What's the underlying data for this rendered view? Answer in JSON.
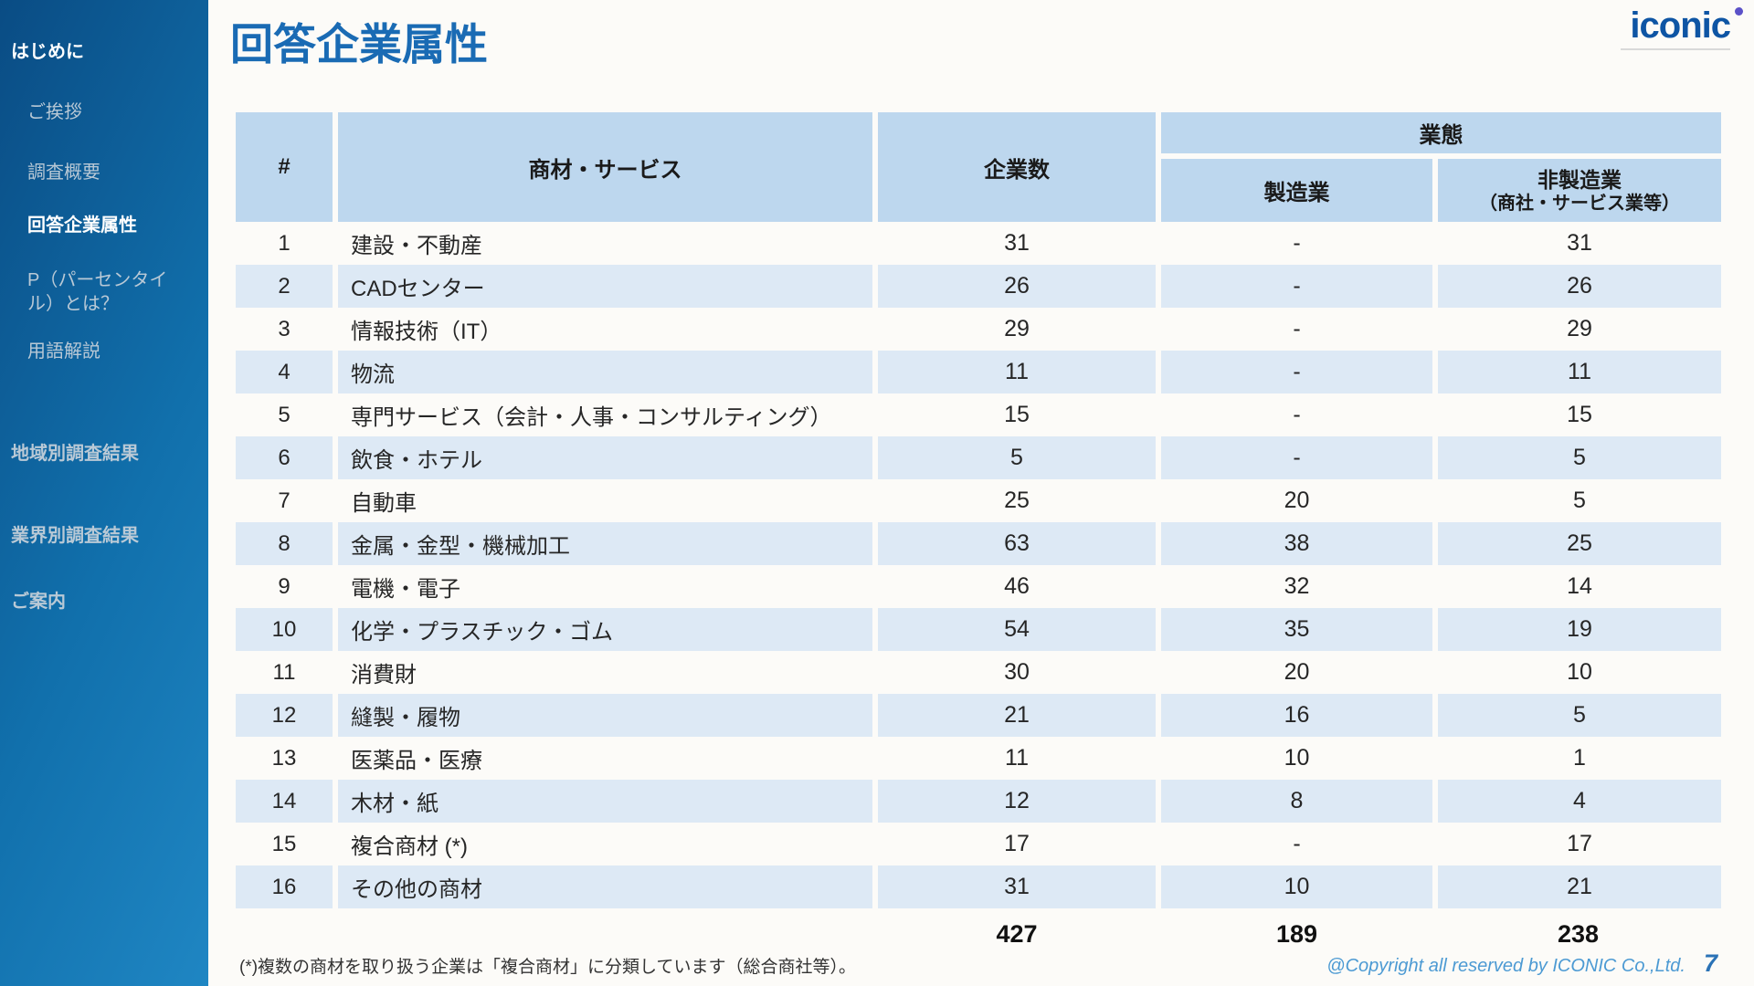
{
  "page": {
    "title": "回答企業属性",
    "footnote": "(*)複数の商材を取り扱う企業は「複合商材」に分類しています（総合商社等）。",
    "copyright": "@Copyright all reserved by ICONIC Co.,Ltd.",
    "page_number": "7"
  },
  "logo": {
    "text": "iconic",
    "dot_icon": "purple-dot"
  },
  "colors": {
    "accent_blue": "#1a6bb4",
    "logo_blue": "#0e55a4",
    "dot_purple": "#5b51c8",
    "table_header_bg": "#bdd7ee",
    "table_stripe_bg": "#dde9f5",
    "sidebar_gradient_start": "#0a4c84",
    "sidebar_gradient_end": "#1f86c3",
    "copyright_blue": "#4c9ad3"
  },
  "sidebar": {
    "items": [
      {
        "label": "はじめに",
        "type": "section",
        "active": true
      },
      {
        "label": "ご挨拶",
        "type": "sub",
        "active": false
      },
      {
        "label": "調査概要",
        "type": "sub",
        "active": false
      },
      {
        "label": "回答企業属性",
        "type": "sub",
        "active": true
      },
      {
        "label": "P（パーセンタイル）とは？",
        "type": "sub",
        "active": false
      },
      {
        "label": "用語解説",
        "type": "sub",
        "active": false
      },
      {
        "label": "地域別調査結果",
        "type": "section",
        "active": false
      },
      {
        "label": "業界別調査結果",
        "type": "section",
        "active": false
      },
      {
        "label": "ご案内",
        "type": "section",
        "active": false
      }
    ]
  },
  "table": {
    "headers": {
      "num": "#",
      "service": "商材・サービス",
      "companies": "企業数",
      "business_type": "業態",
      "manufacturing": "製造業",
      "non_manufacturing_line1": "非製造業",
      "non_manufacturing_line2": "（商社・サービス業等）"
    },
    "rows": [
      [
        "1",
        "建設・不動産",
        "31",
        "-",
        "31"
      ],
      [
        "2",
        "CADセンター",
        "26",
        "-",
        "26"
      ],
      [
        "3",
        "情報技術（IT）",
        "29",
        "-",
        "29"
      ],
      [
        "4",
        "物流",
        "11",
        "-",
        "11"
      ],
      [
        "5",
        "専門サービス（会計・人事・コンサルティング）",
        "15",
        "-",
        "15"
      ],
      [
        "6",
        "飲食・ホテル",
        "5",
        "-",
        "5"
      ],
      [
        "7",
        "自動車",
        "25",
        "20",
        "5"
      ],
      [
        "8",
        "金属・金型・機械加工",
        "63",
        "38",
        "25"
      ],
      [
        "9",
        "電機・電子",
        "46",
        "32",
        "14"
      ],
      [
        "10",
        "化学・プラスチック・ゴム",
        "54",
        "35",
        "19"
      ],
      [
        "11",
        "消費財",
        "30",
        "20",
        "10"
      ],
      [
        "12",
        "縫製・履物",
        "21",
        "16",
        "5"
      ],
      [
        "13",
        "医薬品・医療",
        "11",
        "10",
        "1"
      ],
      [
        "14",
        "木材・紙",
        "12",
        "8",
        "4"
      ],
      [
        "15",
        "複合商材 (*)",
        "17",
        "-",
        "17"
      ],
      [
        "16",
        "その他の商材",
        "31",
        "10",
        "21"
      ]
    ],
    "totals": {
      "companies": "427",
      "manufacturing": "189",
      "non_manufacturing": "238"
    }
  }
}
